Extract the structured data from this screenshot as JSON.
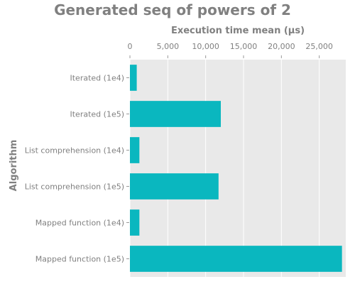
{
  "chart_data": {
    "type": "bar",
    "orientation": "horizontal",
    "title": "Generated seq of powers of 2",
    "xlabel": "Execution time mean (µs)",
    "ylabel": "Algorithm",
    "x_axis_position": "top",
    "xlim": [
      0,
      28500
    ],
    "xticks": [
      0,
      5000,
      10000,
      15000,
      20000,
      25000
    ],
    "xtick_labels": [
      "0",
      "5,000",
      "10,000",
      "15,000",
      "20,000",
      "25,000"
    ],
    "grid": true,
    "categories": [
      "Iterated (1e4)",
      "Iterated (1e5)",
      "List comprehension (1e4)",
      "List comprehension (1e5)",
      "Mapped function (1e4)",
      "Mapped function (1e5)"
    ],
    "values": [
      900,
      12000,
      1250,
      11700,
      1250,
      28000
    ],
    "bar_color": "#0ab7bf",
    "background_color": "#e9e9e9",
    "text_color": "#808080"
  }
}
